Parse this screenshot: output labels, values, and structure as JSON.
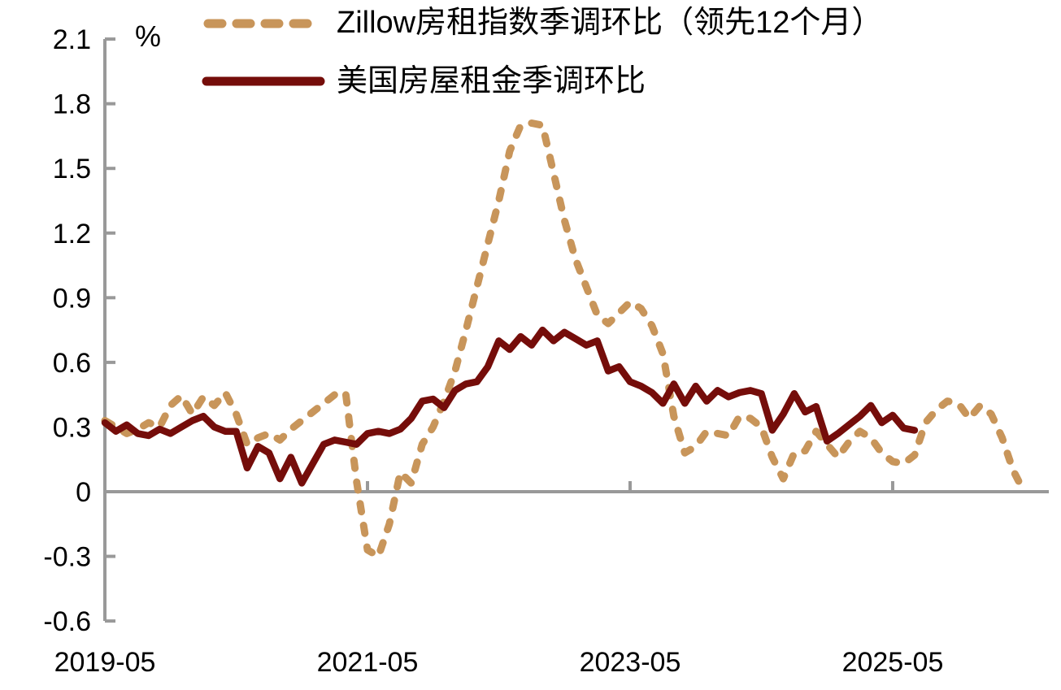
{
  "chart_data": {
    "type": "line",
    "title": "",
    "unit_label": "%",
    "axis_color": "#999999",
    "text_color": "#000000",
    "grid": "zero-baseline-only",
    "legend_position": "top-left",
    "x_tick_labels": [
      "2019-05",
      "2021-05",
      "2023-05",
      "2025-05"
    ],
    "x_tick_month_offsets": [
      0,
      24,
      48,
      72
    ],
    "y_tick_labels": [
      "2.1",
      "1.8",
      "1.5",
      "1.2",
      "0.9",
      "0.6",
      "0.3",
      "0",
      "-0.3",
      "-0.6"
    ],
    "y_ticks": [
      2.1,
      1.8,
      1.5,
      1.2,
      0.9,
      0.6,
      0.3,
      0,
      -0.3,
      -0.6
    ],
    "ylim": [
      -0.6,
      2.1
    ],
    "x_start_month": "2019-05",
    "months_per_point": 1,
    "series": [
      {
        "name": "Zillow房租指数季调环比（领先12个月）",
        "color": "#C8955A",
        "style": "dashed",
        "start_month": "2019-05",
        "end_month": "2026-05",
        "values": [
          0.33,
          0.3,
          0.27,
          0.29,
          0.32,
          0.3,
          0.4,
          0.445,
          0.36,
          0.44,
          0.4,
          0.46,
          0.36,
          0.22,
          0.25,
          0.27,
          0.24,
          0.29,
          0.33,
          0.37,
          0.41,
          0.45,
          0.46,
          0.05,
          -0.27,
          -0.3,
          -0.15,
          0.09,
          0.04,
          0.22,
          0.3,
          0.42,
          0.56,
          0.75,
          0.95,
          1.15,
          1.35,
          1.58,
          1.7,
          1.71,
          1.7,
          1.48,
          1.26,
          1.08,
          0.95,
          0.82,
          0.78,
          0.83,
          0.88,
          0.85,
          0.77,
          0.64,
          0.35,
          0.18,
          0.21,
          0.28,
          0.27,
          0.26,
          0.35,
          0.34,
          0.3,
          0.16,
          0.06,
          0.18,
          0.19,
          0.28,
          0.22,
          0.16,
          0.23,
          0.28,
          0.25,
          0.18,
          0.14,
          0.13,
          0.17,
          0.32,
          0.38,
          0.42,
          0.41,
          0.34,
          0.4,
          0.36,
          0.25,
          0.1,
          0.0
        ]
      },
      {
        "name": "美国房屋租金季调环比",
        "color": "#750D0A",
        "style": "solid",
        "start_month": "2019-05",
        "end_month": "2025-07",
        "values": [
          0.32,
          0.28,
          0.31,
          0.27,
          0.26,
          0.29,
          0.27,
          0.3,
          0.33,
          0.35,
          0.3,
          0.28,
          0.28,
          0.11,
          0.21,
          0.18,
          0.06,
          0.16,
          0.04,
          0.13,
          0.22,
          0.24,
          0.23,
          0.22,
          0.27,
          0.28,
          0.27,
          0.29,
          0.34,
          0.42,
          0.43,
          0.39,
          0.47,
          0.5,
          0.51,
          0.58,
          0.7,
          0.66,
          0.72,
          0.68,
          0.75,
          0.7,
          0.74,
          0.71,
          0.68,
          0.7,
          0.56,
          0.58,
          0.51,
          0.49,
          0.46,
          0.41,
          0.5,
          0.41,
          0.49,
          0.42,
          0.47,
          0.44,
          0.46,
          0.47,
          0.455,
          0.285,
          0.36,
          0.455,
          0.37,
          0.395,
          0.235,
          0.27,
          0.31,
          0.35,
          0.4,
          0.32,
          0.355,
          0.295,
          0.285
        ]
      }
    ]
  }
}
